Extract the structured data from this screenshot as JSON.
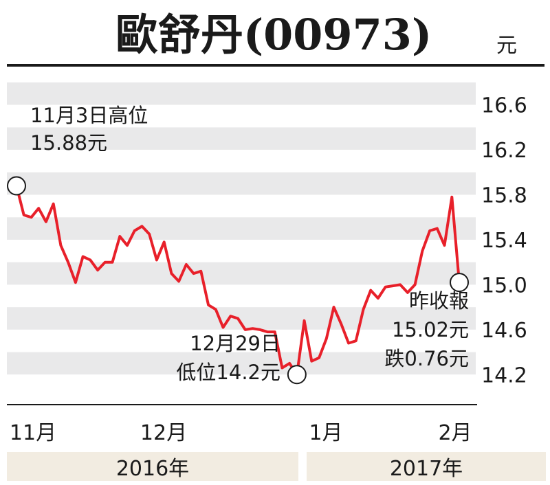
{
  "chart_data": {
    "type": "line",
    "title": "歐舒丹(00973)",
    "unit": "元",
    "ylim": [
      14.0,
      16.8
    ],
    "y_ticks": [
      "16.6",
      "16.2",
      "15.8",
      "15.4",
      "15.0",
      "14.6",
      "14.2"
    ],
    "x_labels": [
      "11月",
      "12月",
      "1月",
      "2月"
    ],
    "years": [
      "2016年",
      "2017年"
    ],
    "series": [
      {
        "color": "#e8202a",
        "values": [
          15.88,
          15.62,
          15.6,
          15.68,
          15.56,
          15.72,
          15.35,
          15.2,
          15.02,
          15.25,
          15.22,
          15.13,
          15.2,
          15.2,
          15.43,
          15.35,
          15.48,
          15.52,
          15.45,
          15.22,
          15.38,
          15.1,
          15.03,
          15.18,
          15.1,
          15.12,
          14.82,
          14.78,
          14.62,
          14.72,
          14.7,
          14.6,
          14.61,
          14.6,
          14.58,
          14.58,
          14.26,
          14.3,
          14.2,
          14.68,
          14.32,
          14.35,
          14.52,
          14.8,
          14.65,
          14.48,
          14.5,
          14.78,
          14.95,
          14.88,
          14.98,
          14.99,
          15.0,
          14.93,
          15.0,
          15.3,
          15.48,
          15.5,
          15.35,
          15.78,
          15.02
        ]
      }
    ],
    "annotations": [
      {
        "lines": [
          "11月3日高位",
          "15.88元"
        ]
      },
      {
        "lines": [
          "12月29日",
          "低位14.2元"
        ]
      },
      {
        "lines": [
          "昨收報",
          "15.02元",
          "跌0.76元"
        ]
      }
    ]
  }
}
